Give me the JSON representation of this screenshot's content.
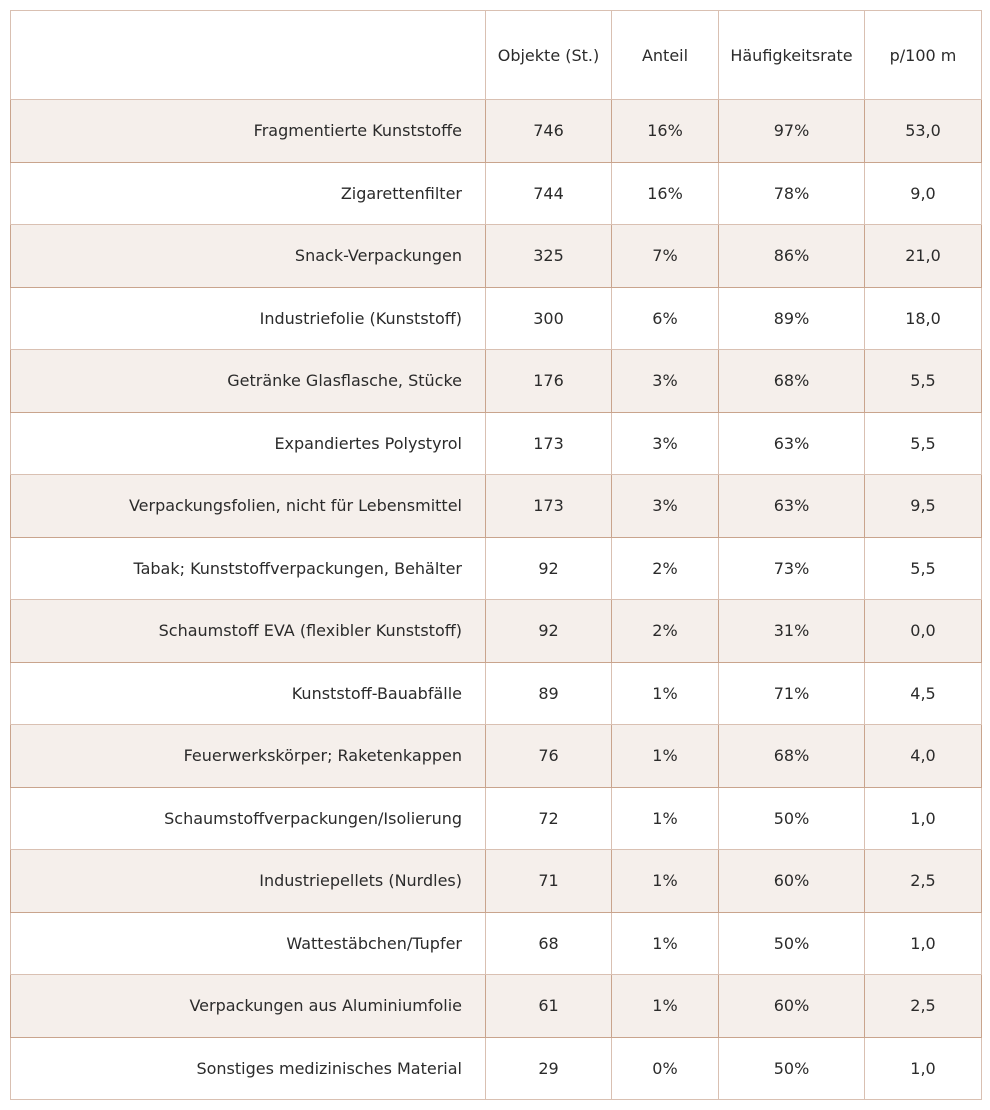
{
  "table": {
    "headers": [
      "",
      "Objekte (St.)",
      "Anteil",
      "Häufigkeitsrate",
      "p/100 m"
    ],
    "rows": [
      [
        "Fragmentierte Kunststoffe",
        "746",
        "16%",
        "97%",
        "53,0"
      ],
      [
        "Zigarettenfilter",
        "744",
        "16%",
        "78%",
        "9,0"
      ],
      [
        "Snack-Verpackungen",
        "325",
        "7%",
        "86%",
        "21,0"
      ],
      [
        "Industriefolie (Kunststoff)",
        "300",
        "6%",
        "89%",
        "18,0"
      ],
      [
        "Getränke Glasflasche, Stücke",
        "176",
        "3%",
        "68%",
        "5,5"
      ],
      [
        "Expandiertes Polystyrol",
        "173",
        "3%",
        "63%",
        "5,5"
      ],
      [
        "Verpackungsfolien, nicht für Lebensmittel",
        "173",
        "3%",
        "63%",
        "9,5"
      ],
      [
        "Tabak; Kunststoffverpackungen, Behälter",
        "92",
        "2%",
        "73%",
        "5,5"
      ],
      [
        "Schaumstoff EVA (flexibler Kunststoff)",
        "92",
        "2%",
        "31%",
        "0,0"
      ],
      [
        "Kunststoff-Bauabfälle",
        "89",
        "1%",
        "71%",
        "4,5"
      ],
      [
        "Feuerwerkskörper; Raketenkappen",
        "76",
        "1%",
        "68%",
        "4,0"
      ],
      [
        "Schaumstoffverpackungen/Isolierung",
        "72",
        "1%",
        "50%",
        "1,0"
      ],
      [
        "Industriepellets (Nurdles)",
        "71",
        "1%",
        "60%",
        "2,5"
      ],
      [
        "Wattestäbchen/Tupfer",
        "68",
        "1%",
        "50%",
        "1,0"
      ],
      [
        "Verpackungen aus Aluminiumfolie",
        "61",
        "1%",
        "60%",
        "2,5"
      ],
      [
        "Sonstiges medizinisches Material",
        "29",
        "0%",
        "50%",
        "1,0"
      ]
    ]
  }
}
